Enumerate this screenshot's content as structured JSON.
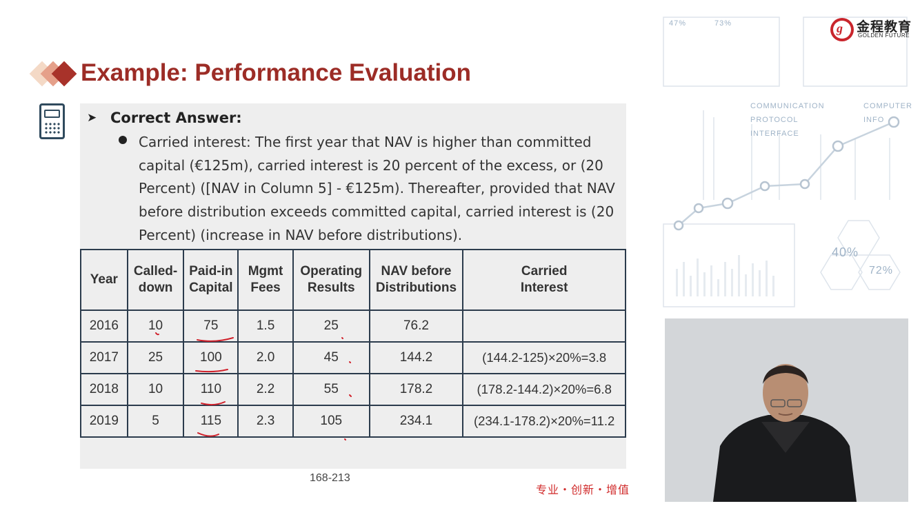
{
  "slide": {
    "title": "Example: Performance Evaluation",
    "section_heading": "Correct Answer:",
    "body_text": "Carried interest: The first year that NAV is higher than committed capital (€125m), carried interest is 20 percent of the excess, or (20 Percent) ([NAV in Column 5] - €125m). Thereafter, provided that NAV before distribution exceeds committed capital, carried interest is (20 Percent) (increase in NAV before distributions).",
    "page_number": "168-213",
    "slogan": "专业・创新・增值"
  },
  "brand": {
    "name_cn": "金程教育",
    "name_en": "GOLDEN FUTURE",
    "accent_color": "#9c2c26",
    "logo_color": "#c9252c"
  },
  "table": {
    "headers": [
      "Year",
      "Called-down",
      "Paid-in Capital",
      "Mgmt Fees",
      "Operating Results",
      "NAV before Distributions",
      "Carried Interest"
    ],
    "rows": [
      [
        "2016",
        "10",
        "75",
        "1.5",
        "25",
        "76.2",
        ""
      ],
      [
        "2017",
        "25",
        "100",
        "2.0",
        "45",
        "144.2",
        "(144.2-125)×20%=3.8"
      ],
      [
        "2018",
        "10",
        "110",
        "2.2",
        "55",
        "178.2",
        "(178.2-144.2)×20%=6.8"
      ],
      [
        "2019",
        "5",
        "115",
        "2.3",
        "105",
        "234.1",
        "(234.1-178.2)×20%=11.2"
      ]
    ]
  },
  "background_labels": [
    "COMMUNICATION PROTOCOL INTERFACE",
    "COMPUTER INFO",
    "47%",
    "73%",
    "40%",
    "72%"
  ],
  "icons": {
    "calculator": "calculator-icon",
    "arrow": "arrow-bullet-icon",
    "logo": "golden-future-logo"
  }
}
